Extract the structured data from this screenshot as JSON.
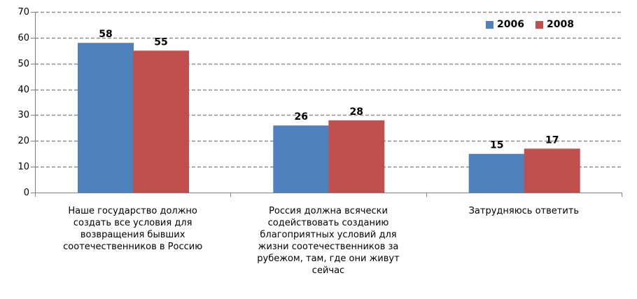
{
  "chart_data": {
    "type": "bar",
    "title": "",
    "xlabel": "",
    "ylabel": "",
    "categories": [
      [
        "Наше государство должно",
        "создать все условия для",
        "возвращения бывших",
        "соотечественников в Россию"
      ],
      [
        "Россия должна всячески",
        "содействовать созданию",
        "благоприятных условий для",
        "жизни соотечественников за",
        "рубежом, там, где они живут",
        "сейчас"
      ],
      [
        "Затрудняюсь ответить"
      ]
    ],
    "series": [
      {
        "name": "2006",
        "color": "#4F81BD",
        "values": [
          58,
          26,
          15
        ]
      },
      {
        "name": "2008",
        "color": "#C0504D",
        "values": [
          55,
          28,
          17
        ]
      }
    ],
    "data_labels": [
      [
        "58",
        "26",
        "15"
      ],
      [
        "55",
        "28",
        "17"
      ]
    ],
    "ylim": [
      0,
      70
    ],
    "yticks": [
      0,
      10,
      20,
      30,
      40,
      50,
      60,
      70
    ],
    "ytick_labels": [
      "0",
      "10",
      "20",
      "30",
      "40",
      "50",
      "60",
      "70"
    ],
    "grid": true,
    "legend_position": "top-right",
    "gridline_color": "#8C8C8C",
    "axis_color": "#808080"
  }
}
